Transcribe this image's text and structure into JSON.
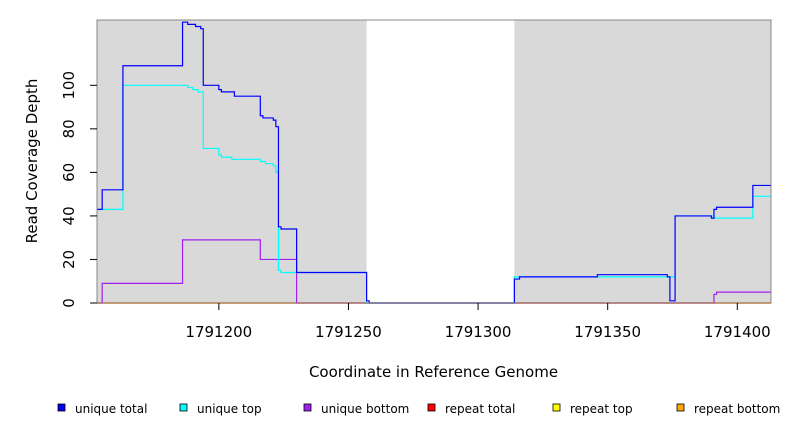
{
  "chart_data": {
    "type": "line",
    "title": "",
    "xlabel": "Coordinate in Reference Genome",
    "ylabel": "Read Coverage Depth",
    "xlim": [
      1791153,
      1791413
    ],
    "ylim": [
      0,
      130
    ],
    "xticks": [
      1791200,
      1791250,
      1791300,
      1791350,
      1791400
    ],
    "yticks": [
      0,
      20,
      40,
      60,
      80,
      100
    ],
    "grid": false,
    "background_color": "#d9d9d9",
    "unshaded_ranges": [
      [
        1791257,
        1791314
      ]
    ],
    "legend_position": "bottom",
    "series": [
      {
        "name": "unique total",
        "color": "#0000ff",
        "x": [
          1791153,
          1791155,
          1791155,
          1791163,
          1791163,
          1791186,
          1791186,
          1791188,
          1791188,
          1791191,
          1791191,
          1791193,
          1791193,
          1791194,
          1791194,
          1791200,
          1791200,
          1791201,
          1791201,
          1791206,
          1791206,
          1791216,
          1791216,
          1791217,
          1791217,
          1791221,
          1791221,
          1791222,
          1791222,
          1791223,
          1791223,
          1791224,
          1791224,
          1791230,
          1791230,
          1791257,
          1791257,
          1791258,
          1791258,
          1791314,
          1791314,
          1791316,
          1791316,
          1791346,
          1791346,
          1791373,
          1791373,
          1791374,
          1791374,
          1791376,
          1791376,
          1791390,
          1791390,
          1791391,
          1791391,
          1791392,
          1791392,
          1791406,
          1791406,
          1791413
        ],
        "y": [
          43,
          43,
          52,
          52,
          109,
          109,
          129,
          129,
          128,
          128,
          127,
          127,
          126,
          126,
          100,
          100,
          98,
          98,
          97,
          97,
          95,
          95,
          86,
          86,
          85,
          85,
          84,
          84,
          81,
          81,
          35,
          35,
          34,
          34,
          14,
          14,
          1,
          1,
          0,
          0,
          11,
          11,
          12,
          12,
          13,
          13,
          12,
          12,
          1,
          1,
          40,
          40,
          39,
          39,
          43,
          43,
          44,
          44,
          54,
          54
        ]
      },
      {
        "name": "unique top",
        "color": "#00ffff",
        "x": [
          1791153,
          1791163,
          1791163,
          1791188,
          1791188,
          1791190,
          1791190,
          1791192,
          1791192,
          1791194,
          1791194,
          1791200,
          1791200,
          1791201,
          1791201,
          1791205,
          1791205,
          1791216,
          1791216,
          1791218,
          1791218,
          1791221,
          1791221,
          1791222,
          1791222,
          1791223,
          1791223,
          1791224,
          1791224,
          1791230,
          1791230,
          1791257,
          1791257,
          1791314,
          1791314,
          1791376,
          1791376,
          1791391,
          1791391,
          1791406,
          1791406,
          1791413
        ],
        "y": [
          43,
          43,
          100,
          100,
          99,
          99,
          98,
          98,
          97,
          97,
          71,
          71,
          68,
          68,
          67,
          67,
          66,
          66,
          65,
          65,
          64,
          64,
          63,
          63,
          60,
          60,
          15,
          15,
          14,
          14,
          14,
          14,
          0,
          0,
          12,
          12,
          40,
          40,
          39,
          39,
          49,
          49
        ]
      },
      {
        "name": "unique bottom",
        "color": "#a020f0",
        "x": [
          1791153,
          1791155,
          1791155,
          1791186,
          1791186,
          1791216,
          1791216,
          1791230,
          1791230,
          1791391,
          1791391,
          1791392,
          1791392,
          1791413
        ],
        "y": [
          0,
          0,
          9,
          9,
          29,
          29,
          20,
          20,
          0,
          0,
          4,
          4,
          5,
          5
        ]
      },
      {
        "name": "repeat total",
        "color": "#ff0000",
        "x": [
          1791153,
          1791413
        ],
        "y": [
          0,
          0
        ]
      },
      {
        "name": "repeat top",
        "color": "#ffff00",
        "x": [
          1791153,
          1791413
        ],
        "y": [
          0,
          0
        ]
      },
      {
        "name": "repeat bottom",
        "color": "#ffa500",
        "x": [
          1791153,
          1791413
        ],
        "y": [
          0,
          0
        ]
      }
    ]
  }
}
